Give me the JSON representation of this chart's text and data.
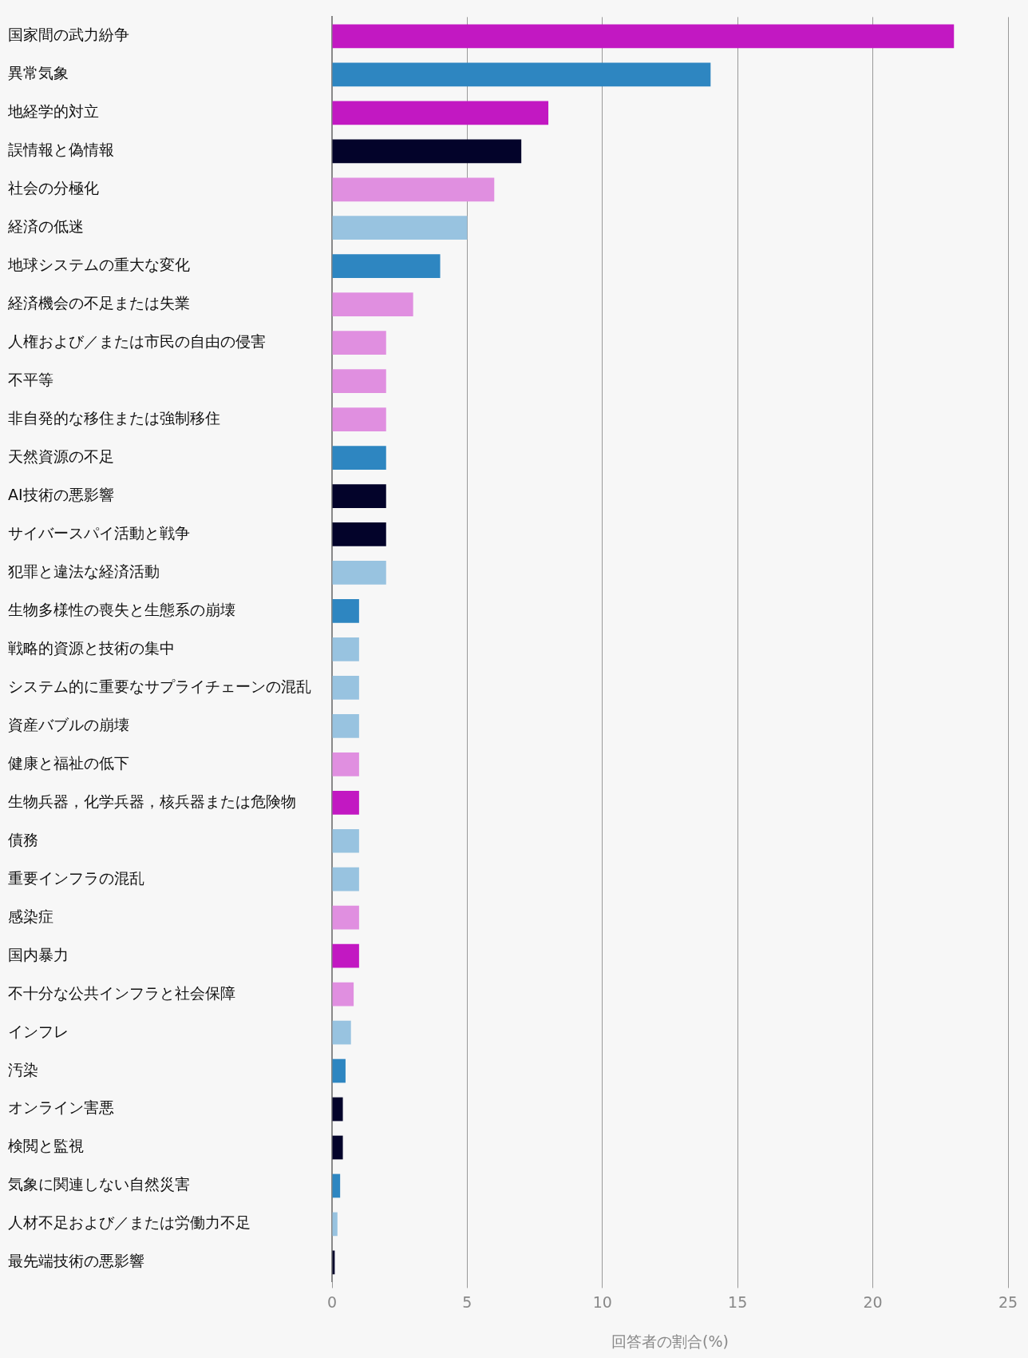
{
  "chart_data": {
    "type": "bar",
    "orientation": "horizontal",
    "xlabel": "回答者の割合(%)",
    "categories": [
      "国家間の武力紛争",
      "異常気象",
      "地経学的対立",
      "誤情報と偽情報",
      "社会の分極化",
      "経済の低迷",
      "地球システムの重大な変化",
      "経済機会の不足または失業",
      "人権および／または市民の自由の侵害",
      "不平等",
      "非自発的な移住または強制移住",
      "天然資源の不足",
      "AI技術の悪影響",
      "サイバースパイ活動と戦争",
      "犯罪と違法な経済活動",
      "生物多様性の喪失と生態系の崩壊",
      "戦略的資源と技術の集中",
      "システム的に重要なサプライチェーンの混乱",
      "資産バブルの崩壊",
      "健康と福祉の低下",
      "生物兵器，化学兵器，核兵器または危険物",
      "債務",
      "重要インフラの混乱",
      "感染症",
      "国内暴力",
      "不十分な公共インフラと社会保障",
      "インフレ",
      "汚染",
      "オンライン害悪",
      "検閲と監視",
      "気象に関連しない自然災害",
      "人材不足および／または労働力不足",
      "最先端技術の悪影響"
    ],
    "values": [
      23,
      14,
      8,
      7,
      6,
      5,
      4,
      3,
      2,
      2,
      2,
      2,
      2,
      2,
      2,
      1,
      1,
      1,
      1,
      1,
      1,
      1,
      1,
      1,
      1,
      0.8,
      0.7,
      0.5,
      0.4,
      0.4,
      0.3,
      0.2,
      0.1
    ],
    "colors": [
      "#c218c2",
      "#2e86c1",
      "#c218c2",
      "#03032a",
      "#e08fe0",
      "#98c3e0",
      "#2e86c1",
      "#e08fe0",
      "#e08fe0",
      "#e08fe0",
      "#e08fe0",
      "#2e86c1",
      "#03032a",
      "#03032a",
      "#98c3e0",
      "#2e86c1",
      "#98c3e0",
      "#98c3e0",
      "#98c3e0",
      "#e08fe0",
      "#c218c2",
      "#98c3e0",
      "#98c3e0",
      "#e08fe0",
      "#c218c2",
      "#e08fe0",
      "#98c3e0",
      "#2e86c1",
      "#03032a",
      "#03032a",
      "#2e86c1",
      "#98c3e0",
      "#03032a"
    ],
    "xlim": [
      0,
      25
    ],
    "xticks": [
      0,
      5,
      10,
      15,
      20,
      25
    ],
    "grid": "x",
    "legend": false
  }
}
